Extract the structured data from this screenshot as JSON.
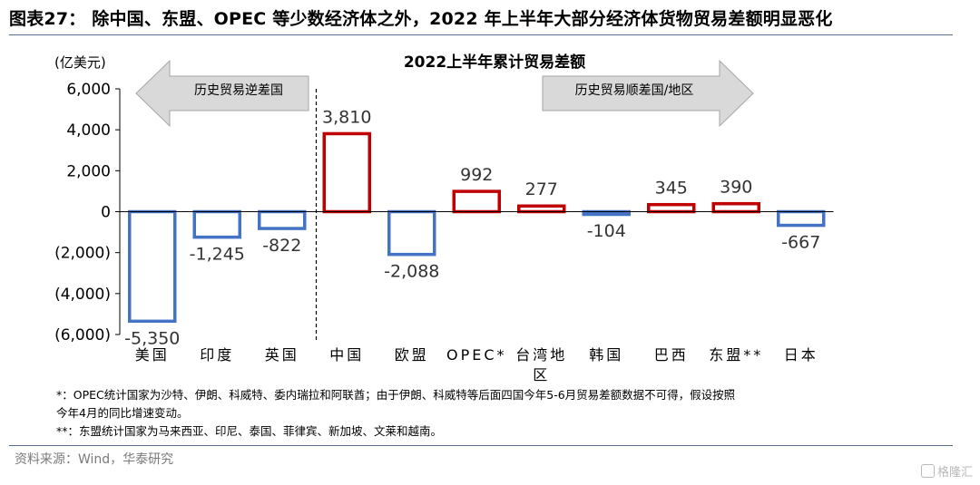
{
  "figure_title": "图表27：   除中国、东盟、OPEC 等少数经济体之外，2022 年上半年大部分经济体货物贸易差额明显恶化",
  "notes": [
    "*：OPEC统计国家为沙特、伊朗、科威特、委内瑞拉和阿联酋；由于伊朗、科威特等后面四国今年5-6月贸易差额数据不可得，假设按照",
    "今年4月的同比增速变动。",
    "**：东盟统计国家为马来西亚、印尼、泰国、菲律宾、新加坡、文莱和越南。"
  ],
  "source": "资料来源：Wind，华泰研究",
  "watermark": "格隆汇",
  "colors": {
    "positive": "#c00000",
    "negative": "#4472c4",
    "arrow": "#d9d9d9",
    "rule": "#5b6f8e"
  },
  "chart_data": {
    "type": "bar",
    "title": "2022上半年累计贸易差额",
    "unit_label": "(亿美元)",
    "ylim": [
      -6000,
      6000
    ],
    "y_ticks": [
      6000,
      4000,
      2000,
      0,
      -2000,
      -4000,
      -6000
    ],
    "y_tick_labels": [
      "6,000",
      "4,000",
      "2,000",
      "0",
      "(2,000)",
      "(4,000)",
      "(6,000)"
    ],
    "categories": [
      "美国",
      "印度",
      "英国",
      "中国",
      "欧盟",
      "OPEC*",
      "台湾地区",
      "韩国",
      "巴西",
      "东盟**",
      "日本"
    ],
    "category_display": [
      "美国",
      "印度",
      "英国",
      "中国",
      "欧盟",
      "OPEC*",
      "台湾地\n区",
      "韩国",
      "巴西",
      "东盟**",
      "日本"
    ],
    "values": [
      -5350,
      -1245,
      -822,
      3810,
      -2088,
      992,
      277,
      -104,
      345,
      390,
      -667
    ],
    "data_labels": [
      "-5,350",
      "-1,245",
      "-822",
      "3,810",
      "-2,088",
      "992",
      "277",
      "-104",
      "345",
      "390",
      "-667"
    ],
    "annotations": {
      "left_arrow": "历史贸易逆差国",
      "right_arrow": "历史贸易顺差国/地区"
    },
    "divider_after_index": 2,
    "grid": false
  }
}
